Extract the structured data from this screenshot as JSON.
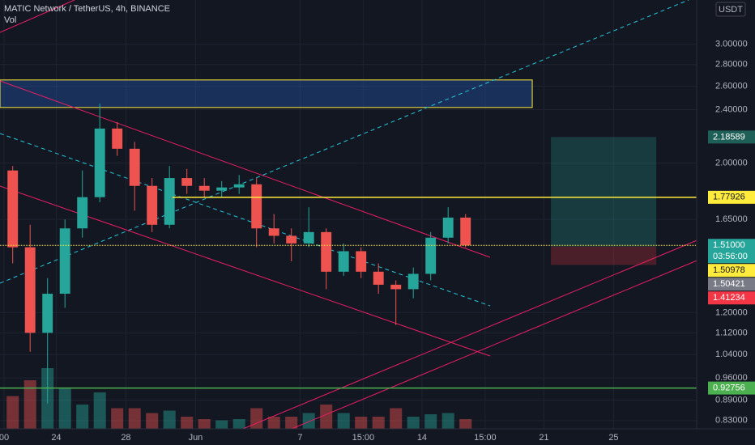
{
  "chart_data": {
    "type": "candlestick",
    "title": "MATIC Network / TetherUS, 4h, BINANCE",
    "subtitle": "Vol",
    "y_unit": "USDT",
    "log_scale": true,
    "grid": true,
    "up_color": "#26a69a",
    "down_color": "#ef5350",
    "x": [
      0.5,
      1.5,
      2.5,
      3.5,
      4.5,
      5.5,
      6.5,
      7.5,
      8.5,
      9.5,
      10.5,
      11.5,
      12.5,
      13.5,
      14.5,
      15.5,
      16.5,
      17.5,
      18.5,
      19.5,
      20.5,
      21.5,
      22.5,
      23.5,
      24.5,
      25.5,
      26.5
    ],
    "open": [
      1.95,
      1.5,
      1.12,
      1.28,
      1.6,
      1.78,
      2.25,
      2.1,
      1.85,
      1.62,
      1.9,
      1.85,
      1.82,
      1.84,
      1.86,
      1.6,
      1.56,
      1.52,
      1.58,
      1.38,
      1.48,
      1.38,
      1.32,
      1.3,
      1.37,
      1.55,
      1.66
    ],
    "high": [
      1.98,
      1.62,
      1.35,
      1.65,
      1.95,
      2.45,
      2.3,
      2.15,
      1.9,
      1.98,
      1.96,
      1.9,
      1.88,
      1.92,
      1.9,
      1.68,
      1.6,
      1.72,
      1.6,
      1.52,
      1.5,
      1.42,
      1.34,
      1.4,
      1.58,
      1.72,
      1.68
    ],
    "low": [
      1.42,
      1.05,
      0.88,
      1.22,
      1.55,
      1.75,
      2.05,
      1.7,
      1.58,
      1.6,
      1.8,
      1.78,
      1.78,
      1.8,
      1.5,
      1.52,
      1.43,
      1.5,
      1.3,
      1.36,
      1.35,
      1.28,
      1.15,
      1.26,
      1.34,
      1.52,
      1.5
    ],
    "close": [
      1.5,
      1.12,
      1.28,
      1.6,
      1.78,
      2.25,
      2.1,
      1.85,
      1.62,
      1.9,
      1.85,
      1.82,
      1.84,
      1.86,
      1.6,
      1.56,
      1.52,
      1.58,
      1.38,
      1.48,
      1.38,
      1.32,
      1.3,
      1.37,
      1.55,
      1.66,
      1.51
    ],
    "volume": [
      27,
      40,
      50,
      33,
      20,
      30,
      17,
      17,
      13,
      15,
      10,
      8,
      7,
      8,
      17,
      10,
      10,
      13,
      20,
      13,
      10,
      10,
      17,
      10,
      12,
      13,
      8
    ],
    "xlim": [
      -0.23,
      39.77
    ],
    "xticks": [
      {
        "value": 0,
        "label": "00"
      },
      {
        "value": 3,
        "label": "24"
      },
      {
        "value": 7,
        "label": "28"
      },
      {
        "value": 11,
        "label": "Jun"
      },
      {
        "value": 17,
        "label": "7"
      },
      {
        "value": 20.625,
        "label": "15:00"
      },
      {
        "value": 24,
        "label": "14"
      },
      {
        "value": 27.625,
        "label": "15:00"
      },
      {
        "value": 31,
        "label": "21"
      },
      {
        "value": 35,
        "label": "25"
      }
    ],
    "ylim": [
      0.807,
      3.49
    ],
    "yticks": [
      {
        "value": 3.0,
        "label": "3.00000"
      },
      {
        "value": 2.8,
        "label": "2.80000"
      },
      {
        "value": 2.6,
        "label": "2.60000"
      },
      {
        "value": 2.4,
        "label": "2.40000"
      },
      {
        "value": 2.0,
        "label": "2.00000"
      },
      {
        "value": 1.65,
        "label": "1.65000"
      },
      {
        "value": 1.2,
        "label": "1.20000"
      },
      {
        "value": 1.12,
        "label": "1.12000"
      },
      {
        "value": 1.04,
        "label": "1.04000"
      },
      {
        "value": 0.96,
        "label": "0.96000"
      },
      {
        "value": 0.89,
        "label": "0.89000"
      },
      {
        "value": 0.83,
        "label": "0.83000"
      }
    ],
    "y2lim": [
      0,
      100
    ],
    "highlight_box": {
      "x": [
        -0.23,
        30.33
      ],
      "y": [
        2.418,
        2.656
      ]
    },
    "position": {
      "x": [
        31.4,
        37.45
      ],
      "target": {
        "value": 2.18589,
        "label": "2.18589",
        "color": "#1e5f58"
      },
      "entry": {
        "value": 1.50421,
        "label": "1.50421",
        "color": "#787b86"
      },
      "stop": {
        "value": 1.41234,
        "label": "1.41234",
        "color": "#f23645"
      }
    },
    "levels": [
      {
        "value": 1.77926,
        "label": "1.77926",
        "color": "#ffeb3b",
        "start": 9.67,
        "dotted": false
      },
      {
        "value": 1.50978,
        "label": "1.50978",
        "color": "#ffeb3b",
        "start": -0.23,
        "dotted": true
      },
      {
        "value": 0.92756,
        "label": "0.92756",
        "color": "#4caf50",
        "start": -0.23,
        "dotted": false
      }
    ],
    "last_price": {
      "value": 1.51,
      "label": "1.51000",
      "countdown": "03:56:00",
      "color": "#26a69a"
    }
  }
}
